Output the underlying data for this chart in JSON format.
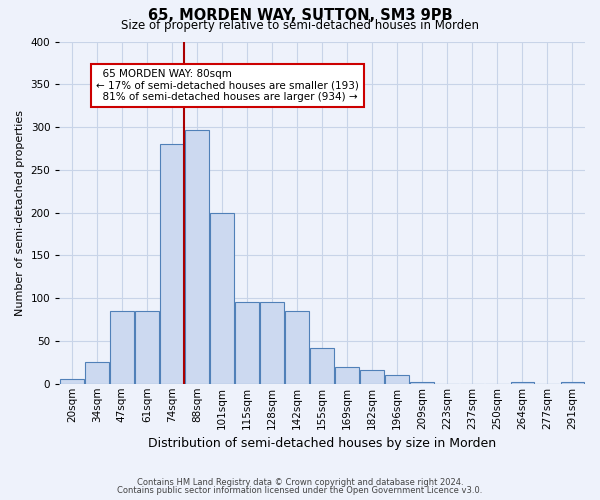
{
  "title": "65, MORDEN WAY, SUTTON, SM3 9PB",
  "subtitle": "Size of property relative to semi-detached houses in Morden",
  "xlabel": "Distribution of semi-detached houses by size in Morden",
  "ylabel": "Number of semi-detached properties",
  "bin_labels": [
    "20sqm",
    "34sqm",
    "47sqm",
    "61sqm",
    "74sqm",
    "88sqm",
    "101sqm",
    "115sqm",
    "128sqm",
    "142sqm",
    "155sqm",
    "169sqm",
    "182sqm",
    "196sqm",
    "209sqm",
    "223sqm",
    "237sqm",
    "250sqm",
    "264sqm",
    "277sqm",
    "291sqm"
  ],
  "bar_values": [
    5,
    25,
    85,
    85,
    280,
    297,
    199,
    95,
    95,
    85,
    42,
    20,
    16,
    10,
    2,
    0,
    0,
    0,
    2,
    0,
    2
  ],
  "bar_color": "#ccd9f0",
  "bar_edge_color": "#5080b8",
  "property_label": "65 MORDEN WAY: 80sqm",
  "pct_smaller": 17,
  "pct_larger": 81,
  "n_smaller": 193,
  "n_larger": 934,
  "vline_pos": 4.5,
  "vline_color": "#aa0000",
  "ylim": [
    0,
    400
  ],
  "yticks": [
    0,
    50,
    100,
    150,
    200,
    250,
    300,
    350,
    400
  ],
  "annotation_box_color": "#ffffff",
  "annotation_box_edge": "#cc0000",
  "grid_color": "#c8d4e8",
  "bg_color": "#eef2fb",
  "title_fontsize": 10.5,
  "subtitle_fontsize": 8.5,
  "tick_fontsize": 7.5,
  "ylabel_fontsize": 8,
  "xlabel_fontsize": 9,
  "footer_line1": "Contains HM Land Registry data © Crown copyright and database right 2024.",
  "footer_line2": "Contains public sector information licensed under the Open Government Licence v3.0."
}
